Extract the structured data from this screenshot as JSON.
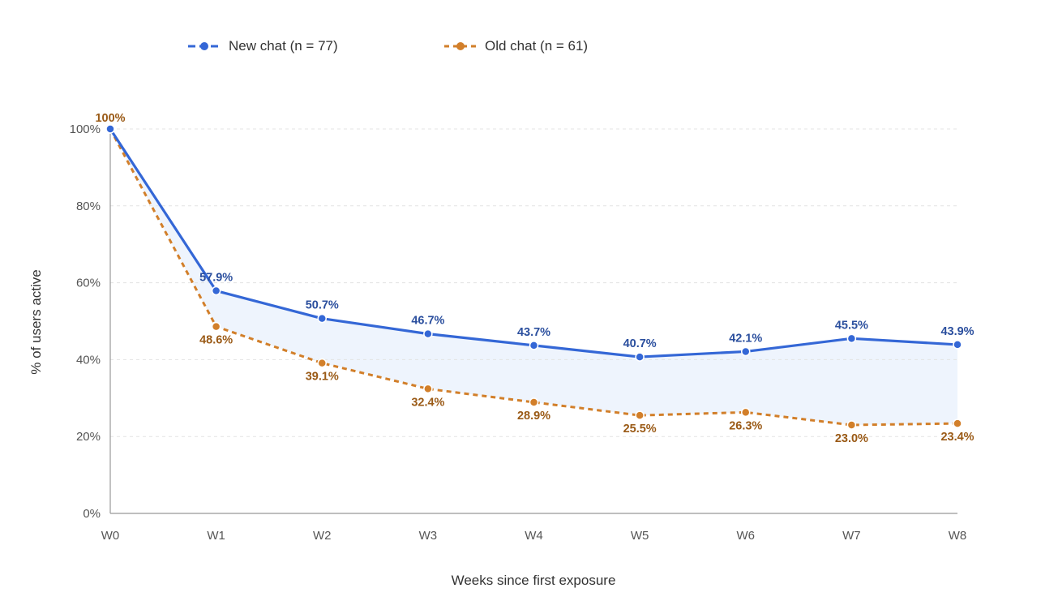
{
  "chart_data": {
    "type": "line",
    "categories": [
      "W0",
      "W1",
      "W2",
      "W3",
      "W4",
      "W5",
      "W6",
      "W7",
      "W8"
    ],
    "series": [
      {
        "name": "New chat (n = 77)",
        "values": [
          100,
          57.9,
          50.7,
          46.7,
          43.7,
          40.7,
          42.1,
          45.5,
          43.9
        ],
        "labels": [
          "",
          "57.9%",
          "50.7%",
          "46.7%",
          "43.7%",
          "40.7%",
          "42.1%",
          "45.5%",
          "43.9%"
        ],
        "color": "#3467d6",
        "label_color": "#2b4f9e",
        "line_style": "solid"
      },
      {
        "name": "Old chat (n = 61)",
        "values": [
          100,
          48.6,
          39.1,
          32.4,
          28.9,
          25.5,
          26.3,
          23.0,
          23.4
        ],
        "labels": [
          "100%",
          "48.6%",
          "39.1%",
          "32.4%",
          "28.9%",
          "25.5%",
          "26.3%",
          "23.0%",
          "23.4%"
        ],
        "color": "#d27f2a",
        "label_color": "#9a5a16",
        "line_style": "dashed"
      }
    ],
    "xlabel": "Weeks since first exposure",
    "ylabel": "% of users active",
    "ylim": [
      0,
      100
    ],
    "yticks": [
      0,
      20,
      40,
      60,
      80,
      100
    ],
    "ytick_labels": [
      "0%",
      "20%",
      "40%",
      "60%",
      "80%",
      "100%"
    ],
    "fill_between_color": "#eef4fd",
    "grid": true,
    "legend_position": "top"
  }
}
